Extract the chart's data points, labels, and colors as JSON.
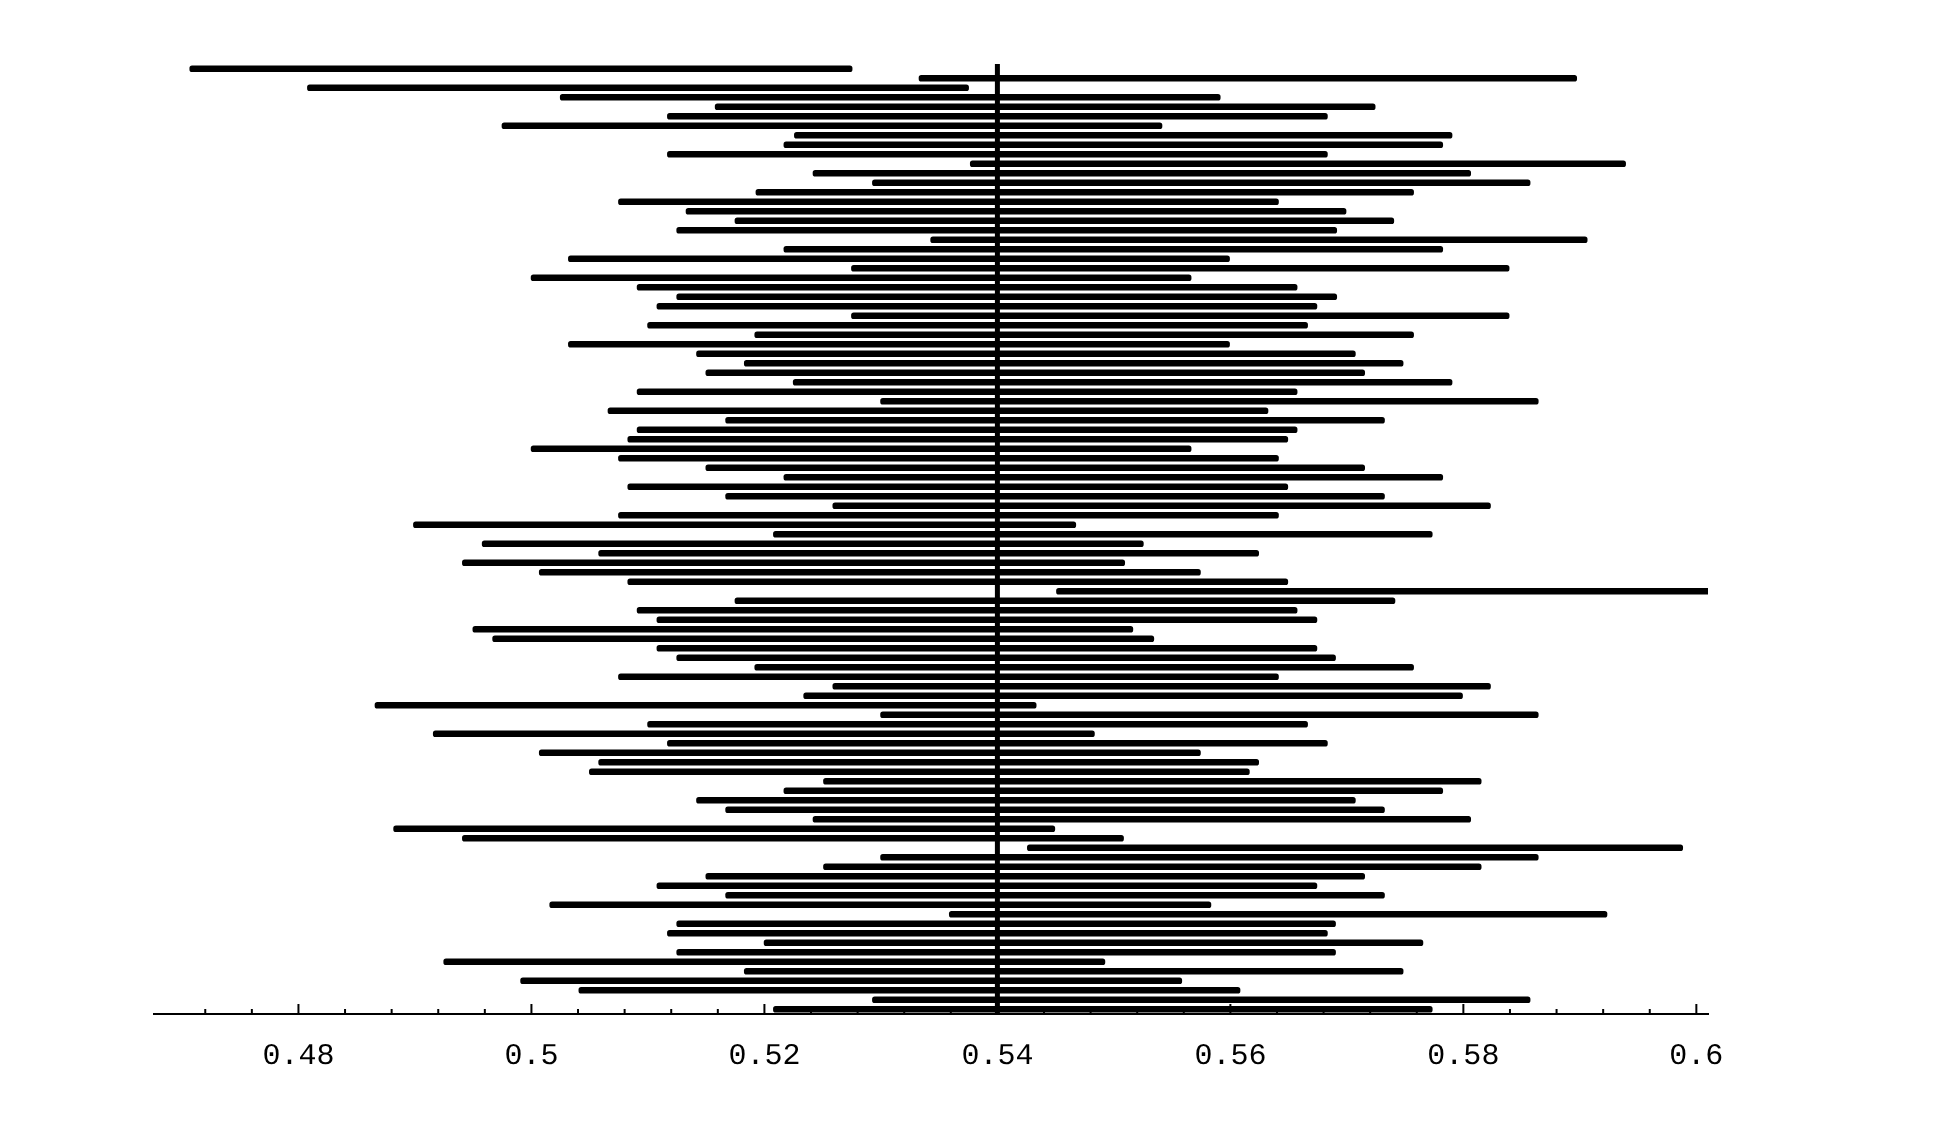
{
  "chart_data": {
    "type": "bar",
    "orientation": "horizontal",
    "tick_labels": "x",
    "color": "#000000",
    "categories": [
      null,
      null,
      null,
      null,
      null,
      null,
      null,
      null,
      null,
      null,
      null,
      null,
      null,
      null,
      null,
      null,
      null,
      null,
      null,
      null,
      null,
      null,
      null,
      null,
      null,
      null,
      null,
      null,
      null,
      null,
      null,
      null,
      null,
      null,
      null,
      null,
      null,
      null,
      null,
      null,
      null,
      null,
      null,
      null,
      null,
      null,
      null,
      null,
      null,
      null,
      null,
      null,
      null,
      null,
      null,
      null,
      null,
      null,
      null,
      null,
      null,
      null,
      null,
      null,
      null,
      null,
      null,
      null,
      null,
      null,
      null,
      null,
      null,
      null,
      null,
      null,
      null,
      null,
      null,
      null,
      null,
      null,
      null,
      null,
      null,
      null,
      null,
      null,
      null,
      null,
      null,
      null,
      null,
      null,
      null,
      null,
      null,
      null,
      null,
      null
    ],
    "base": [
      0.4707,
      0.5333,
      0.4808,
      0.5025,
      0.5158,
      0.5117,
      0.4975,
      0.5226,
      0.5217,
      0.5117,
      0.5377,
      0.5242,
      0.5293,
      0.5193,
      0.5075,
      0.5133,
      0.5175,
      0.5125,
      0.5343,
      0.5217,
      0.5032,
      0.5275,
      0.5,
      0.5091,
      0.5125,
      0.5108,
      0.5275,
      0.51,
      0.5192,
      0.5032,
      0.5142,
      0.5183,
      0.515,
      0.5225,
      0.5091,
      0.53,
      0.5066,
      0.5167,
      0.5091,
      0.5083,
      0.5,
      0.5075,
      0.515,
      0.5217,
      0.5083,
      0.5167,
      0.5259,
      0.5075,
      0.4899,
      0.5208,
      0.4958,
      0.5058,
      0.4941,
      0.5007,
      0.5083,
      0.5451,
      0.5175,
      0.5091,
      0.5108,
      0.495,
      0.4967,
      0.5108,
      0.5125,
      0.5192,
      0.5075,
      0.5259,
      0.5234,
      0.4866,
      0.53,
      0.51,
      0.4916,
      0.5117,
      0.5007,
      0.5058,
      0.505,
      0.5251,
      0.5217,
      0.5142,
      0.5167,
      0.5242,
      0.4882,
      0.4941,
      0.5426,
      0.53,
      0.5251,
      0.515,
      0.5108,
      0.5167,
      0.5016,
      0.5359,
      0.5125,
      0.5117,
      0.52,
      0.5125,
      0.4925,
      0.5183,
      0.4991,
      0.5041,
      0.5293,
      0.5208
    ],
    "values": [
      0.0568,
      0.0564,
      0.0567,
      0.0566,
      0.0566,
      0.0566,
      0.0566,
      0.0564,
      0.0565,
      0.0566,
      0.0562,
      0.0564,
      0.0564,
      0.0564,
      0.0566,
      0.0566,
      0.0565,
      0.0566,
      0.0563,
      0.0565,
      0.0567,
      0.0564,
      0.0566,
      0.0566,
      0.0566,
      0.0566,
      0.0564,
      0.0566,
      0.0565,
      0.0567,
      0.0565,
      0.0565,
      0.0565,
      0.0565,
      0.0566,
      0.0564,
      0.0566,
      0.0565,
      0.0566,
      0.0566,
      0.0566,
      0.0566,
      0.0565,
      0.0565,
      0.0566,
      0.0565,
      0.0564,
      0.0566,
      0.0568,
      0.0565,
      0.0567,
      0.0566,
      0.0568,
      0.0567,
      0.0566,
      0.0562,
      0.0566,
      0.0566,
      0.0566,
      0.0566,
      0.0567,
      0.0566,
      0.0565,
      0.0565,
      0.0566,
      0.0564,
      0.0565,
      0.0567,
      0.0564,
      0.0566,
      0.0567,
      0.0566,
      0.0567,
      0.0566,
      0.0566,
      0.0564,
      0.0565,
      0.0565,
      0.0565,
      0.0564,
      0.0567,
      0.0567,
      0.0562,
      0.0564,
      0.0564,
      0.0565,
      0.0566,
      0.0565,
      0.0567,
      0.0564,
      0.0565,
      0.0566,
      0.0565,
      0.0565,
      0.0567,
      0.0565,
      0.0567,
      0.0567,
      0.0564,
      0.0565
    ],
    "xlim": [
      0.4676,
      0.601
    ],
    "xticks": [
      {
        "value": 0.472,
        "label": null
      },
      {
        "value": 0.476,
        "label": null
      },
      0.48,
      {
        "value": 0.484,
        "label": null
      },
      {
        "value": 0.488,
        "label": null
      },
      {
        "value": 0.492,
        "label": null
      },
      {
        "value": 0.496,
        "label": null
      },
      0.5,
      {
        "value": 0.504,
        "label": null
      },
      {
        "value": 0.508,
        "label": null
      },
      {
        "value": 0.512,
        "label": null
      },
      {
        "value": 0.516,
        "label": null
      },
      0.52,
      {
        "value": 0.524,
        "label": null
      },
      {
        "value": 0.528,
        "label": null
      },
      {
        "value": 0.532,
        "label": null
      },
      {
        "value": 0.536,
        "label": null
      },
      0.54,
      {
        "value": 0.544,
        "label": null
      },
      {
        "value": 0.548,
        "label": null
      },
      {
        "value": 0.552,
        "label": null
      },
      {
        "value": 0.556,
        "label": null
      },
      0.56,
      {
        "value": 0.564,
        "label": null
      },
      {
        "value": 0.568,
        "label": null
      },
      {
        "value": 0.572,
        "label": null
      },
      {
        "value": 0.576,
        "label": null
      },
      0.58,
      {
        "value": 0.584,
        "label": null
      },
      {
        "value": 0.588,
        "label": null
      },
      {
        "value": 0.592,
        "label": null
      },
      {
        "value": 0.596,
        "label": null
      },
      0.6
    ],
    "ref_lines": [
      {
        "axis": "x",
        "value": 0.54,
        "color": "#000000"
      }
    ]
  }
}
